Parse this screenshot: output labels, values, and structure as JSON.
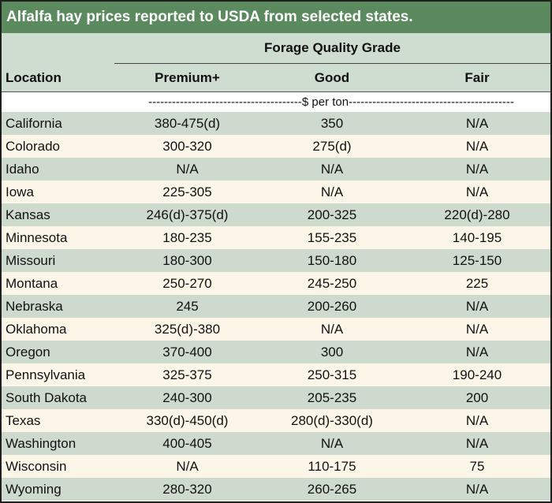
{
  "title": "Alfalfa hay prices reported to USDA from selected states.",
  "header": {
    "group_label": "Forage Quality Grade",
    "location_label": "Location",
    "columns": [
      "Premium+",
      "Good",
      "Fair"
    ]
  },
  "units_row": "---------------------------------------$ per ton------------------------------------------",
  "rows": [
    {
      "location": "California",
      "premium": "380-475(d)",
      "good": "350",
      "fair": "N/A"
    },
    {
      "location": "Colorado",
      "premium": "300-320",
      "good": "275(d)",
      "fair": "N/A"
    },
    {
      "location": "Idaho",
      "premium": "N/A",
      "good": "N/A",
      "fair": "N/A"
    },
    {
      "location": "Iowa",
      "premium": "225-305",
      "good": "N/A",
      "fair": "N/A"
    },
    {
      "location": "Kansas",
      "premium": "246(d)-375(d)",
      "good": "200-325",
      "fair": "220(d)-280"
    },
    {
      "location": "Minnesota",
      "premium": "180-235",
      "good": "155-235",
      "fair": "140-195"
    },
    {
      "location": "Missouri",
      "premium": "180-300",
      "good": "150-180",
      "fair": "125-150"
    },
    {
      "location": "Montana",
      "premium": "250-270",
      "good": "245-250",
      "fair": "225"
    },
    {
      "location": "Nebraska",
      "premium": "245",
      "good": "200-260",
      "fair": "N/A"
    },
    {
      "location": "Oklahoma",
      "premium": "325(d)-380",
      "good": "N/A",
      "fair": "N/A"
    },
    {
      "location": "Oregon",
      "premium": "370-400",
      "good": "300",
      "fair": "N/A"
    },
    {
      "location": "Pennsylvania",
      "premium": "325-375",
      "good": "250-315",
      "fair": "190-240"
    },
    {
      "location": "South Dakota",
      "premium": "240-300",
      "good": "205-235",
      "fair": "200"
    },
    {
      "location": "Texas",
      "premium": "330(d)-450(d)",
      "good": "280(d)-330(d)",
      "fair": "N/A"
    },
    {
      "location": "Washington",
      "premium": "400-405",
      "good": "N/A",
      "fair": "N/A"
    },
    {
      "location": "Wisconsin",
      "premium": "N/A",
      "good": "110-175",
      "fair": "75"
    },
    {
      "location": "Wyoming",
      "premium": "280-320",
      "good": "260-265",
      "fair": "N/A"
    }
  ],
  "colors": {
    "title_bg": "#5b8a5e",
    "header_bg": "#cfdcd0",
    "row_alt": "#cddacd",
    "row_plain": "#fbf6e8"
  }
}
